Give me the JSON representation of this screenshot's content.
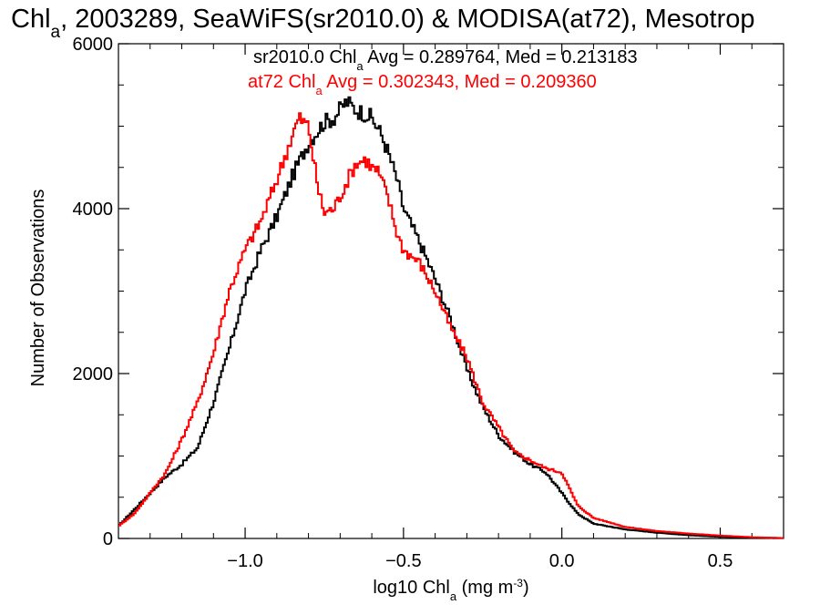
{
  "chart_data": {
    "type": "line",
    "title_parts": [
      "Chl",
      "a",
      ", 2003289, SeaWiFS(sr2010.0) & MODISA(at72), Mesotrop"
    ],
    "xlabel_parts": [
      "log10 Chl",
      "a",
      " (mg m",
      "-3",
      ")"
    ],
    "ylabel": "Number of Observations",
    "xlim": [
      -1.4,
      0.7
    ],
    "ylim": [
      0,
      6000
    ],
    "x_ticks": [
      -1.0,
      -0.5,
      0.0,
      0.5
    ],
    "x_tick_labels": [
      "−1.0",
      "−0.5",
      "0.0",
      "0.5"
    ],
    "y_ticks": [
      0,
      2000,
      4000,
      6000
    ],
    "y_tick_labels": [
      "0",
      "2000",
      "4000",
      "6000"
    ],
    "grid": false,
    "legend": {
      "placement": "top",
      "entries": [
        {
          "name_parts": [
            "sr2010.0 Chl",
            "a",
            " Avg = 0.289764, Med = 0.213183"
          ],
          "color": "#000000"
        },
        {
          "name_parts": [
            "at72 Chl",
            "a",
            " Avg = 0.302343, Med = 0.209360"
          ],
          "color": "#ff0000"
        }
      ]
    },
    "series": [
      {
        "name": "sr2010.0",
        "color": "#000000",
        "x": [
          -1.4,
          -1.35,
          -1.3,
          -1.25,
          -1.2,
          -1.15,
          -1.1,
          -1.05,
          -1.0,
          -0.95,
          -0.9,
          -0.85,
          -0.8,
          -0.75,
          -0.72,
          -0.7,
          -0.68,
          -0.65,
          -0.62,
          -0.6,
          -0.57,
          -0.55,
          -0.52,
          -0.5,
          -0.45,
          -0.4,
          -0.35,
          -0.3,
          -0.25,
          -0.2,
          -0.15,
          -0.1,
          -0.05,
          0.0,
          0.05,
          0.1,
          0.2,
          0.3,
          0.4,
          0.5,
          0.6,
          0.7
        ],
        "y": [
          150,
          350,
          550,
          750,
          900,
          1100,
          1650,
          2300,
          3000,
          3500,
          3900,
          4400,
          4800,
          5050,
          5100,
          5200,
          5300,
          5200,
          5150,
          5100,
          4900,
          4700,
          4350,
          4000,
          3600,
          3150,
          2650,
          2050,
          1600,
          1250,
          1050,
          900,
          800,
          550,
          300,
          180,
          110,
          70,
          40,
          20,
          10,
          5
        ]
      },
      {
        "name": "at72",
        "color": "#ff0000",
        "x": [
          -1.4,
          -1.35,
          -1.3,
          -1.25,
          -1.2,
          -1.15,
          -1.1,
          -1.05,
          -1.0,
          -0.95,
          -0.9,
          -0.85,
          -0.83,
          -0.8,
          -0.77,
          -0.75,
          -0.72,
          -0.7,
          -0.67,
          -0.65,
          -0.62,
          -0.6,
          -0.58,
          -0.55,
          -0.52,
          -0.5,
          -0.45,
          -0.4,
          -0.35,
          -0.3,
          -0.25,
          -0.2,
          -0.15,
          -0.1,
          -0.05,
          0.0,
          0.05,
          0.1,
          0.2,
          0.3,
          0.4,
          0.5,
          0.6,
          0.7
        ],
        "y": [
          150,
          300,
          550,
          800,
          1200,
          1650,
          2250,
          3000,
          3500,
          3850,
          4350,
          4900,
          5100,
          5000,
          4250,
          3950,
          4000,
          4150,
          4400,
          4550,
          4600,
          4500,
          4450,
          4150,
          3700,
          3500,
          3350,
          3000,
          2550,
          2200,
          1650,
          1350,
          1050,
          950,
          850,
          800,
          400,
          250,
          140,
          90,
          60,
          35,
          15,
          5
        ]
      }
    ]
  }
}
